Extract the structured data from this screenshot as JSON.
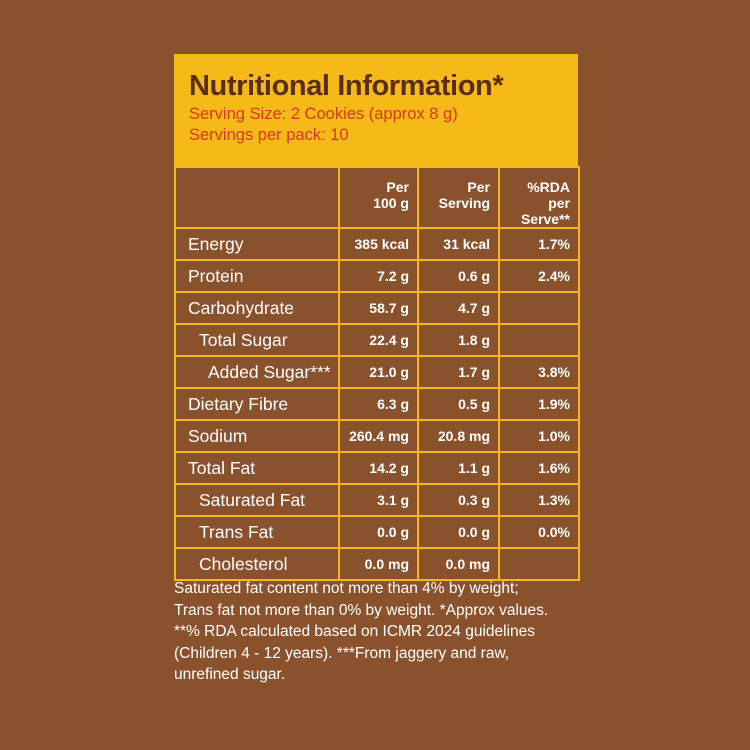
{
  "header": {
    "title": "Nutritional Information*",
    "serving_size": "Serving Size: 2 Cookies (approx 8 g)",
    "servings_per_pack": "Servings per pack: 10"
  },
  "table": {
    "columns": [
      "",
      "Per\n100 g",
      "Per\nServing",
      "%RDA per\nServe**"
    ],
    "rows": [
      {
        "name": "Energy",
        "level": 0,
        "per100": "385 kcal",
        "perServing": "31 kcal",
        "rda": "1.7%"
      },
      {
        "name": "Protein",
        "level": 0,
        "per100": "7.2 g",
        "perServing": "0.6 g",
        "rda": "2.4%"
      },
      {
        "name": "Carbohydrate",
        "level": 0,
        "per100": "58.7 g",
        "perServing": "4.7 g",
        "rda": ""
      },
      {
        "name": "Total Sugar",
        "level": 1,
        "per100": "22.4 g",
        "perServing": "1.8 g",
        "rda": ""
      },
      {
        "name": "Added Sugar***",
        "level": 2,
        "per100": "21.0 g",
        "perServing": "1.7 g",
        "rda": "3.8%"
      },
      {
        "name": "Dietary Fibre",
        "level": 0,
        "per100": "6.3 g",
        "perServing": "0.5 g",
        "rda": "1.9%"
      },
      {
        "name": "Sodium",
        "level": 0,
        "per100": "260.4 mg",
        "perServing": "20.8 mg",
        "rda": "1.0%"
      },
      {
        "name": "Total Fat",
        "level": 0,
        "per100": "14.2 g",
        "perServing": "1.1 g",
        "rda": "1.6%"
      },
      {
        "name": "Saturated Fat",
        "level": 1,
        "per100": "3.1 g",
        "perServing": "0.3 g",
        "rda": "1.3%"
      },
      {
        "name": "Trans Fat",
        "level": 1,
        "per100": "0.0 g",
        "perServing": "0.0 g",
        "rda": "0.0%"
      },
      {
        "name": "Cholesterol",
        "level": 1,
        "per100": "0.0 mg",
        "perServing": "0.0 mg",
        "rda": ""
      }
    ]
  },
  "footnote": {
    "lines": [
      "Saturated fat content not more than 4% by weight;",
      "Trans fat not more than 0% by weight. *Approx values.",
      "**% RDA calculated based on ICMR 2024 guidelines",
      "(Children 4 - 12 years). ***From jaggery and raw,",
      "unrefined sugar."
    ]
  },
  "colors": {
    "background": "#8a522c",
    "header_bg": "#f5b918",
    "title": "#5a2e12",
    "subtitle": "#d9381d",
    "text": "#ffffff"
  }
}
